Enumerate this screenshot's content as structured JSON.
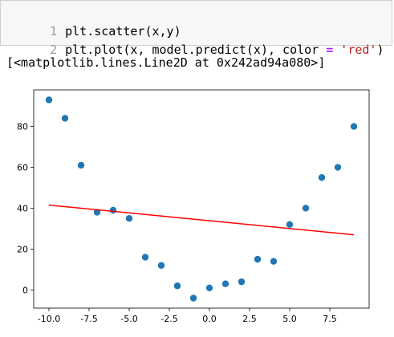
{
  "cell": {
    "lines": [
      {
        "number": "1",
        "code": "plt.scatter(x,y)"
      },
      {
        "number": "2",
        "code_parts": [
          "plt.plot(x, model.predict(x), color ",
          "=",
          " ",
          "'red'",
          ")"
        ]
      }
    ]
  },
  "output": {
    "repr": "[<matplotlib.lines.Line2D at 0x242ad94a080>]"
  },
  "chart_data": {
    "type": "scatter",
    "x": [
      -10,
      -9,
      -8,
      -7,
      -6,
      -5,
      -4,
      -3,
      -2,
      -1,
      0,
      1,
      2,
      3,
      4,
      5,
      6,
      7,
      8,
      9
    ],
    "y": [
      93,
      84,
      61,
      38,
      39,
      35,
      16,
      12,
      2,
      -4,
      1,
      3,
      4,
      15,
      14,
      32,
      40,
      55,
      60,
      80
    ],
    "point_color": "#1f77b4",
    "line": {
      "x": [
        -10,
        9
      ],
      "y": [
        41.5,
        27
      ],
      "color": "red"
    },
    "xlim": [
      -10.95,
      9.95
    ],
    "ylim": [
      -8.9,
      97.9
    ],
    "xticks": [
      -10.0,
      -7.5,
      -5.0,
      -2.5,
      0.0,
      2.5,
      5.0,
      7.5
    ],
    "xtick_labels": [
      "-10.0",
      "-7.5",
      "-5.0",
      "-2.5",
      "0.0",
      "2.5",
      "5.0",
      "7.5"
    ],
    "yticks": [
      0,
      20,
      40,
      60,
      80
    ],
    "ytick_labels": [
      "0",
      "20",
      "40",
      "60",
      "80"
    ],
    "grid": false
  }
}
